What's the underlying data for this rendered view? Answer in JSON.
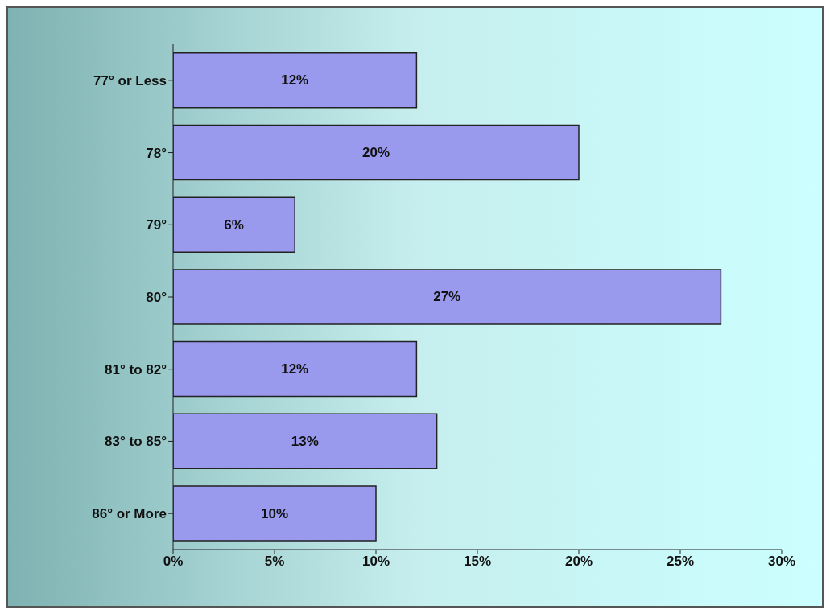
{
  "chart_data": {
    "type": "bar",
    "orientation": "horizontal",
    "categories": [
      "77° or Less",
      "78°",
      "79°",
      "80°",
      "81° to 82°",
      "83° to 85°",
      "86° or More"
    ],
    "values": [
      12,
      20,
      6,
      27,
      12,
      13,
      10
    ],
    "value_labels": [
      "12%",
      "20%",
      "6%",
      "27%",
      "12%",
      "13%",
      "10%"
    ],
    "color": "#9999ee",
    "xlim": [
      0,
      30
    ],
    "xticks": [
      {
        "value": 0,
        "label": "0%"
      },
      {
        "value": 5,
        "label": "5%"
      },
      {
        "value": 10,
        "label": "10%"
      },
      {
        "value": 15,
        "label": "15%"
      },
      {
        "value": 20,
        "label": "20%"
      },
      {
        "value": 25,
        "label": "25%"
      },
      {
        "value": 30,
        "label": "30%"
      }
    ],
    "grid": false,
    "legend": false
  }
}
